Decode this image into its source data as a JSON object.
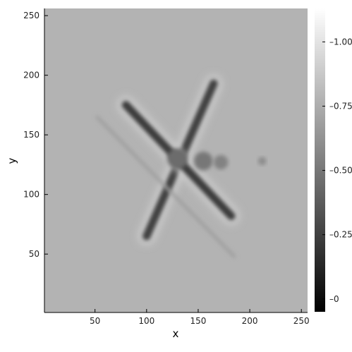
{
  "chart_data": {
    "type": "heatmap",
    "title": "",
    "xlabel": "x",
    "ylabel": "y",
    "xlim": [
      1,
      256
    ],
    "ylim": [
      1,
      256
    ],
    "x_ticks": [
      50,
      100,
      150,
      200,
      250
    ],
    "y_ticks": [
      50,
      100,
      150,
      200,
      250
    ],
    "colormap": "grayscale",
    "colorbar": {
      "range": [
        -0.05,
        1.13
      ],
      "ticks": [
        0,
        0.25,
        0.5,
        0.75,
        1.0
      ],
      "tick_labels": [
        "0",
        "0.25",
        "0.50",
        "0.75",
        "1.00"
      ],
      "position": "right"
    },
    "background_value": 0.78,
    "grid": false,
    "features": [
      {
        "shape": "bar",
        "from": [
          100,
          65
        ],
        "to": [
          165,
          193
        ],
        "width": 8,
        "value": 0.25
      },
      {
        "shape": "bar",
        "from": [
          80,
          175
        ],
        "to": [
          182,
          82
        ],
        "width": 8,
        "value": 0.22
      },
      {
        "shape": "blob",
        "center": [
          130,
          130
        ],
        "radius": 10,
        "value": 0.45
      },
      {
        "shape": "blob",
        "center": [
          155,
          128
        ],
        "radius": 9,
        "value": 0.5
      },
      {
        "shape": "blob",
        "center": [
          172,
          127
        ],
        "radius": 7,
        "value": 0.55
      },
      {
        "shape": "blob",
        "center": [
          212,
          128
        ],
        "radius": 4,
        "value": 0.6
      },
      {
        "shape": "streak",
        "from": [
          52,
          165
        ],
        "to": [
          185,
          48
        ],
        "width": 3,
        "value": 0.68
      }
    ]
  },
  "colors": {
    "background": "#c8c8c8",
    "colorbar_low": "#000000",
    "colorbar_high": "#ffffff",
    "axis": "#000000"
  }
}
